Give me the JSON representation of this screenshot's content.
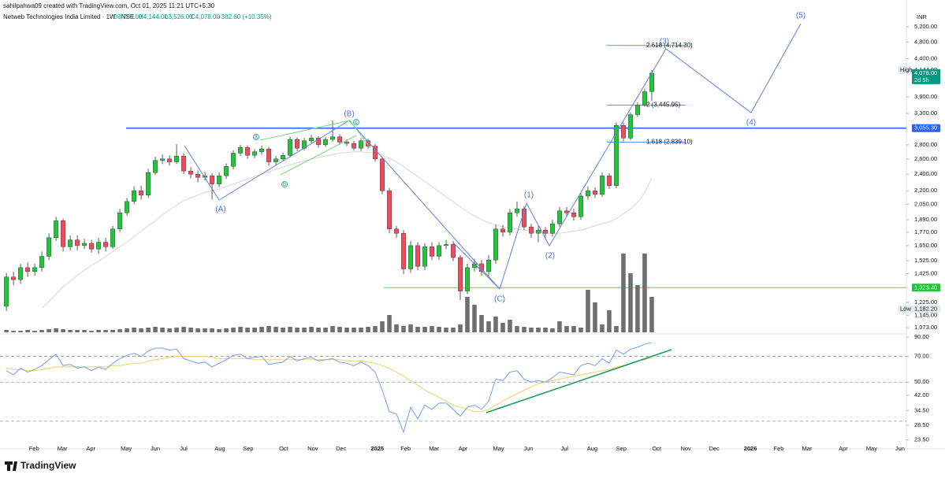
{
  "header": {
    "credit": "sahilpahwa09 created with TradingView.com, Oct 01, 2025 11:21 UTC+5:30",
    "brand": "TradingView"
  },
  "chart_data": {
    "type": "candlestick",
    "title": "Netweb Technologies India Limited · 1W · NSE",
    "legend_values": [
      "O3,700.00",
      "H4,144.00",
      "L3,526.00",
      "C4,078.00",
      "+382.60 (+10.35%)"
    ],
    "currency": "INR",
    "log_scale": true,
    "up_color": "#22c43a",
    "down_color": "#f04a5c",
    "volume_color": "#6f6f6f",
    "ma_color": "#d6d6d6",
    "open": [
      1200,
      1400,
      1380,
      1470,
      1440,
      1470,
      1560,
      1720,
      1880,
      1640,
      1700,
      1650,
      1670,
      1620,
      1680,
      1640,
      1800,
      1960,
      2080,
      2200,
      2150,
      2420,
      2580,
      2600,
      2560,
      2640,
      2440,
      2400,
      2360,
      2380,
      2280,
      2380,
      2500,
      2680,
      2760,
      2650,
      2700,
      2740,
      2560,
      2600,
      2650,
      2880,
      2750,
      2860,
      2900,
      2800,
      2880,
      2920,
      2840,
      2820,
      2750,
      2860,
      2780,
      2600,
      2200,
      1800,
      1760,
      1460,
      1650,
      1480,
      1640,
      1560,
      1650,
      1660,
      1550,
      1300,
      1470,
      1500,
      1440,
      1530,
      1800,
      1770,
      1960,
      2000,
      1820,
      1760,
      1790,
      1760,
      1850,
      1980,
      1960,
      1920,
      2140,
      2200,
      2160,
      2380,
      2260,
      3100,
      2900,
      3280,
      3450,
      3700
    ],
    "high": [
      1430,
      1440,
      1500,
      1510,
      1500,
      1600,
      1760,
      1920,
      1900,
      1740,
      1740,
      1710,
      1700,
      1720,
      1720,
      1830,
      2000,
      2120,
      2250,
      2260,
      2470,
      2630,
      2660,
      2650,
      2810,
      2680,
      2490,
      2450,
      2430,
      2410,
      2420,
      2540,
      2720,
      2800,
      2790,
      2740,
      2790,
      2770,
      2640,
      2690,
      2920,
      2910,
      2900,
      2950,
      2930,
      2920,
      3180,
      2960,
      2880,
      2860,
      2900,
      2890,
      2810,
      2630,
      2230,
      1830,
      1790,
      1690,
      1680,
      1670,
      1680,
      1680,
      1700,
      1690,
      1570,
      1500,
      1540,
      1530,
      1570,
      1840,
      1840,
      2000,
      2080,
      2030,
      1850,
      1830,
      1820,
      1890,
      2020,
      2020,
      2000,
      2180,
      2250,
      2240,
      2420,
      2410,
      3150,
      3150,
      3320,
      3500,
      3760,
      4144
    ],
    "low": [
      1170,
      1340,
      1350,
      1400,
      1410,
      1440,
      1530,
      1690,
      1600,
      1610,
      1610,
      1620,
      1590,
      1580,
      1600,
      1620,
      1770,
      1930,
      2050,
      2100,
      2120,
      2390,
      2530,
      2510,
      2530,
      2400,
      2350,
      2300,
      2320,
      2100,
      2240,
      2340,
      2460,
      2640,
      2600,
      2610,
      2660,
      2510,
      2520,
      2570,
      2620,
      2710,
      2720,
      2820,
      2760,
      2770,
      2850,
      2800,
      2780,
      2720,
      2710,
      2740,
      2560,
      2160,
      1760,
      1720,
      1420,
      1430,
      1450,
      1450,
      1530,
      1530,
      1620,
      1520,
      1240,
      1280,
      1440,
      1410,
      1410,
      1500,
      1730,
      1740,
      1920,
      1790,
      1720,
      1680,
      1720,
      1730,
      1820,
      1920,
      1880,
      1890,
      2100,
      2120,
      2130,
      2220,
      2230,
      2850,
      2870,
      3240,
      3420,
      3526
    ],
    "close": [
      1400,
      1380,
      1470,
      1440,
      1470,
      1560,
      1720,
      1880,
      1640,
      1700,
      1650,
      1670,
      1620,
      1680,
      1640,
      1800,
      1960,
      2080,
      2200,
      2150,
      2420,
      2580,
      2600,
      2560,
      2640,
      2440,
      2400,
      2360,
      2380,
      2280,
      2380,
      2500,
      2680,
      2760,
      2650,
      2700,
      2740,
      2560,
      2600,
      2650,
      2880,
      2750,
      2860,
      2900,
      2800,
      2880,
      2920,
      2840,
      2820,
      2750,
      2860,
      2780,
      2600,
      2200,
      1800,
      1760,
      1460,
      1650,
      1480,
      1640,
      1560,
      1650,
      1660,
      1550,
      1300,
      1470,
      1500,
      1440,
      1530,
      1800,
      1770,
      1960,
      2000,
      1820,
      1760,
      1790,
      1760,
      1850,
      1980,
      1960,
      1920,
      2140,
      2200,
      2160,
      2380,
      2260,
      3100,
      2900,
      3280,
      3450,
      3700,
      4078
    ],
    "volume": [
      3,
      2,
      2,
      3,
      2,
      3,
      4,
      5,
      4,
      3,
      3,
      3,
      2,
      3,
      3,
      3,
      4,
      5,
      6,
      5,
      6,
      7,
      6,
      5,
      6,
      7,
      6,
      5,
      5,
      5,
      4,
      5,
      6,
      7,
      6,
      6,
      7,
      8,
      7,
      6,
      7,
      6,
      6,
      7,
      6,
      6,
      8,
      7,
      6,
      6,
      6,
      7,
      8,
      14,
      22,
      10,
      8,
      10,
      7,
      7,
      8,
      7,
      6,
      6,
      10,
      45,
      35,
      22,
      14,
      20,
      12,
      16,
      8,
      7,
      6,
      6,
      6,
      5,
      14,
      8,
      8,
      6,
      54,
      38,
      10,
      28,
      8,
      100,
      75,
      60,
      100,
      45
    ],
    "ma": [
      null,
      null,
      null,
      null,
      null,
      1190,
      1230,
      1280,
      1330,
      1370,
      1410,
      1450,
      1490,
      1520,
      1560,
      1600,
      1640,
      1680,
      1730,
      1780,
      1830,
      1880,
      1940,
      1990,
      2040,
      2090,
      2120,
      2150,
      2180,
      2200,
      2220,
      2250,
      2280,
      2310,
      2340,
      2370,
      2400,
      2430,
      2460,
      2490,
      2520,
      2550,
      2570,
      2600,
      2620,
      2640,
      2660,
      2680,
      2690,
      2700,
      2700,
      2690,
      2680,
      2650,
      2610,
      2560,
      2500,
      2430,
      2370,
      2310,
      2250,
      2190,
      2130,
      2080,
      2020,
      1970,
      1930,
      1890,
      1860,
      1840,
      1820,
      1810,
      1800,
      1790,
      1780,
      1770,
      1760,
      1760,
      1760,
      1770,
      1780,
      1790,
      1810,
      1830,
      1850,
      1870,
      1900,
      1950,
      2000,
      2070,
      2180,
      2350
    ],
    "xlim": [
      -0.9,
      126.9
    ],
    "xticks": [
      {
        "value": 3.9,
        "label": "Feb"
      },
      {
        "value": 7.9,
        "label": "Mar"
      },
      {
        "value": 11.9,
        "label": "Apr"
      },
      {
        "value": 16.9,
        "label": "May"
      },
      {
        "value": 21,
        "label": "Jun"
      },
      {
        "value": 25,
        "label": "Jul"
      },
      {
        "value": 30.1,
        "label": "Aug"
      },
      {
        "value": 34.1,
        "label": "Sep"
      },
      {
        "value": 39.1,
        "label": "Oct"
      },
      {
        "value": 43.2,
        "label": "Nov"
      },
      {
        "value": 47.2,
        "label": "Dec"
      },
      {
        "value": 52.3,
        "label": "2025"
      },
      {
        "value": 56.3,
        "label": "Feb"
      },
      {
        "value": 60.3,
        "label": "Mar"
      },
      {
        "value": 64.4,
        "label": "Apr"
      },
      {
        "value": 69.4,
        "label": "May"
      },
      {
        "value": 73.6,
        "label": "Jun"
      },
      {
        "value": 78.7,
        "label": "Jul"
      },
      {
        "value": 82.6,
        "label": "Aug"
      },
      {
        "value": 86.7,
        "label": "Sep"
      },
      {
        "value": 91.7,
        "label": "Oct"
      },
      {
        "value": 95.8,
        "label": "Nov"
      },
      {
        "value": 99.8,
        "label": "Dec"
      },
      {
        "value": 104.9,
        "label": "2026"
      },
      {
        "value": 108.9,
        "label": "Feb"
      },
      {
        "value": 112.9,
        "label": "Mar"
      },
      {
        "value": 118,
        "label": "Apr"
      },
      {
        "value": 122,
        "label": "May"
      },
      {
        "value": 126,
        "label": "Jun"
      }
    ],
    "ylim": [
      1047,
      5742
    ],
    "yticks": [
      {
        "value": 5200,
        "label": "5,200.00"
      },
      {
        "value": 4800,
        "label": "4,800.00"
      },
      {
        "value": 4400,
        "label": "4,400.00"
      },
      {
        "value": 3600,
        "label": "3,600.00"
      },
      {
        "value": 3300,
        "label": "3,300.00"
      },
      {
        "value": 2800,
        "label": "2,800.00"
      },
      {
        "value": 2600,
        "label": "2,600.00"
      },
      {
        "value": 2400,
        "label": "2,400.00"
      },
      {
        "value": 2200,
        "label": "2,200.00"
      },
      {
        "value": 2050,
        "label": "2,050.00"
      },
      {
        "value": 1890,
        "label": "1,890.00"
      },
      {
        "value": 1770,
        "label": "1,770.00"
      },
      {
        "value": 1650,
        "label": "1,650.00"
      },
      {
        "value": 1525,
        "label": "1,525.00"
      },
      {
        "value": 1425,
        "label": "1,425.00"
      },
      {
        "value": 1225,
        "label": "1,225.00"
      },
      {
        "value": 1145,
        "label": "1,145.00"
      },
      {
        "value": 1073,
        "label": "1,073.00"
      }
    ],
    "price_tags": [
      {
        "value": 4144,
        "label": "4,144.00",
        "name": "High",
        "color": "#ffffff"
      },
      {
        "value": 4078,
        "label": "4,078.00",
        "note": "2d 5h",
        "color": "#089981"
      },
      {
        "value": 3055.3,
        "label": "3,055.30",
        "color": "#2962ff"
      },
      {
        "value": 1323.4,
        "label": "1,323.40",
        "color": "#22c43a"
      },
      {
        "value": 1182.2,
        "label": "1,182.20",
        "name": "Low",
        "color": "#e8ecf2"
      }
    ],
    "levels": [
      {
        "value": 3055.3,
        "color": "#2962ff"
      },
      {
        "value": 1323.4,
        "color": "#4cd964"
      }
    ],
    "fib_levels": [
      {
        "value": 4714.3,
        "label": "2.618 (4,714.30)",
        "color": "#f23645"
      },
      {
        "value": 3445.95,
        "label": "2 (3,445.95)",
        "color": "#089981"
      },
      {
        "value": 2839.1,
        "label": "1.618 (2,839.10)",
        "color": "#2962ff"
      }
    ],
    "wave_labels": [
      "(A)",
      "(B)",
      "(C)",
      "(1)",
      "(2)",
      "(3)",
      "(4)",
      "(5)"
    ],
    "sub_wave_labels": [
      "a",
      "b",
      "c"
    ],
    "rsi": {
      "color": "#6fa0e8",
      "ma_color": "#f2cf6a",
      "values": [
        58,
        55,
        60,
        57,
        59,
        62,
        67,
        72,
        62,
        63,
        60,
        61,
        58,
        61,
        59,
        64,
        68,
        71,
        73,
        70,
        75,
        78,
        78,
        76,
        77,
        68,
        66,
        64,
        65,
        61,
        64,
        67,
        71,
        72,
        68,
        69,
        70,
        63,
        64,
        65,
        70,
        66,
        68,
        69,
        66,
        67,
        68,
        65,
        64,
        62,
        65,
        62,
        57,
        45,
        34,
        33,
        26,
        36,
        31,
        37,
        35,
        38,
        38,
        35,
        32,
        36,
        37,
        35,
        39,
        52,
        51,
        57,
        58,
        52,
        50,
        51,
        50,
        53,
        57,
        56,
        55,
        62,
        64,
        62,
        68,
        64,
        76,
        72,
        77,
        79,
        82,
        84
      ],
      "ma": [
        60,
        59,
        59,
        58,
        58,
        59,
        60,
        61,
        61,
        61,
        61,
        61,
        61,
        61,
        61,
        62,
        62,
        63,
        64,
        64,
        66,
        67,
        68,
        69,
        70,
        70,
        70,
        70,
        70,
        69,
        68,
        68,
        68,
        68,
        68,
        67,
        67,
        67,
        67,
        67,
        67,
        67,
        67,
        67,
        67,
        67,
        67,
        67,
        66,
        66,
        66,
        65,
        64,
        62,
        60,
        57,
        54,
        51,
        48,
        45,
        43,
        41,
        39,
        37,
        36,
        35,
        34,
        34,
        35,
        37,
        39,
        41,
        43,
        45,
        47,
        49,
        50,
        51,
        52,
        53,
        54,
        55,
        56,
        57,
        58,
        59,
        61,
        62,
        64,
        66,
        67,
        69
      ],
      "bands": [
        70,
        50,
        30
      ],
      "ylim": [
        22,
        92
      ],
      "yticks": [
        {
          "value": 90,
          "label": "90.00"
        },
        {
          "value": 70,
          "label": "70.00"
        },
        {
          "value": 50,
          "label": "50.00"
        },
        {
          "value": 42,
          "label": "42.00"
        },
        {
          "value": 34.5,
          "label": "34.50"
        },
        {
          "value": 28.5,
          "label": "28.50"
        },
        {
          "value": 23.5,
          "label": "23.50"
        }
      ]
    }
  }
}
